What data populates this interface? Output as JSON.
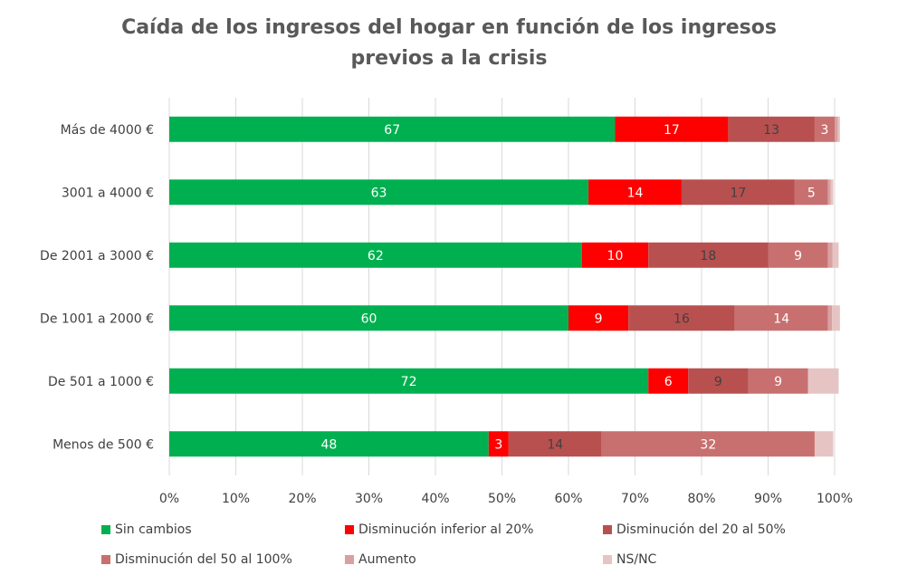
{
  "chart_data": {
    "type": "bar",
    "orientation": "horizontal",
    "stacked": true,
    "title_lines": [
      "Caída de los ingresos del hogar en función de los ingresos",
      "previos a la crisis"
    ],
    "categories": [
      "Más de 4000 €",
      "3001 a 4000 €",
      "De 2001 a 3000 €",
      "De 1001 a 2000 €",
      "De 501 a 1000 €",
      "Menos de 500 €"
    ],
    "series": [
      {
        "name": "Sin cambios",
        "color": "#00B050",
        "label_color": "#ffffff",
        "values": [
          67,
          63,
          62,
          60,
          72,
          48
        ],
        "labels": [
          "67",
          "63",
          "62",
          "60",
          "72",
          "48"
        ]
      },
      {
        "name": "Disminución inferior al 20%",
        "color": "#FF0000",
        "label_color": "#ffffff",
        "values": [
          17,
          14,
          10,
          9,
          6,
          3
        ],
        "labels": [
          "17",
          "14",
          "10",
          "9",
          "6",
          "3"
        ]
      },
      {
        "name": "Disminución del 20 al 50%",
        "color": "#B85050",
        "label_color": "#404040",
        "values": [
          13,
          17,
          18,
          16,
          9,
          14
        ],
        "labels": [
          "13",
          "17",
          "18",
          "16",
          "9",
          "14"
        ]
      },
      {
        "name": "Disminución del 50 al 100%",
        "color": "#C87070",
        "label_color": "#ffffff",
        "values": [
          3,
          5,
          9,
          14,
          9,
          32
        ],
        "labels": [
          "3",
          "5",
          "9",
          "14",
          "9",
          "32"
        ]
      },
      {
        "name": "Aumento",
        "color": "#D9A0A0",
        "label_color": "#404040",
        "values": [
          0.5,
          0.4,
          0.7,
          0.6,
          0,
          0
        ],
        "labels": [
          "",
          "",
          "",
          "",
          "",
          ""
        ]
      },
      {
        "name": "NS/NC",
        "color": "#E6C4C4",
        "label_color": "#404040",
        "values": [
          0.3,
          0.4,
          0.9,
          1.2,
          4.6,
          2.8
        ],
        "labels": [
          "",
          "",
          "",
          "",
          "",
          ""
        ]
      }
    ],
    "xlim": [
      0,
      100
    ],
    "x_ticks": [
      "0%",
      "10%",
      "20%",
      "30%",
      "40%",
      "50%",
      "60%",
      "70%",
      "80%",
      "90%",
      "100%"
    ],
    "grid": "vertical",
    "legend_position": "bottom"
  }
}
